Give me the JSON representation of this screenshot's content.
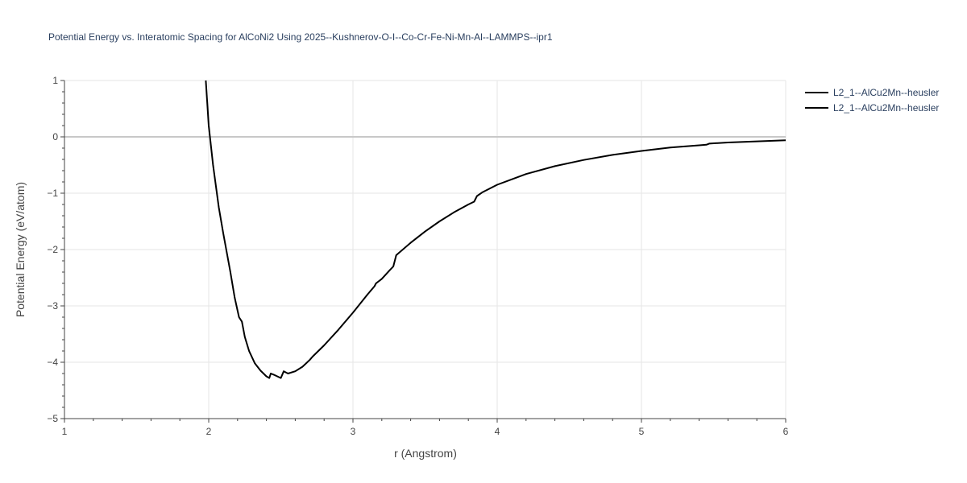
{
  "chart_data": {
    "type": "line",
    "title": "Potential Energy vs. Interatomic Spacing for AlCoNi2 Using 2025--Kushnerov-O-I--Co-Cr-Fe-Ni-Mn-Al--LAMMPS--ipr1",
    "xlabel": "r (Angstrom)",
    "ylabel": "Potential Energy (eV/atom)",
    "xlim": [
      1,
      6
    ],
    "ylim": [
      -5,
      1
    ],
    "x_ticks": [
      1,
      2,
      3,
      4,
      5,
      6
    ],
    "y_ticks": [
      1,
      0,
      -1,
      -2,
      -3,
      -4,
      -5
    ],
    "x_tick_labels": [
      "1",
      "2",
      "3",
      "4",
      "5",
      "6"
    ],
    "y_tick_labels": [
      "1",
      "0",
      "−1",
      "−2",
      "−3",
      "−4",
      "−5"
    ],
    "grid": true,
    "legend_position": "top-right",
    "legend": [
      "L2_1--AlCu2Mn--heusler",
      "L2_1--AlCu2Mn--heusler"
    ],
    "series": [
      {
        "name": "L2_1--AlCu2Mn--heusler",
        "color": "#000000",
        "x": [
          1.98,
          2.0,
          2.03,
          2.07,
          2.1,
          2.15,
          2.18,
          2.21,
          2.23,
          2.25,
          2.28,
          2.32,
          2.36,
          2.4,
          2.42,
          2.43,
          2.45,
          2.5,
          2.52,
          2.55,
          2.6,
          2.65,
          2.7,
          2.72,
          2.8,
          2.9,
          3.0,
          3.1,
          3.15,
          3.16,
          3.2,
          3.25,
          3.28,
          3.3,
          3.4,
          3.5,
          3.6,
          3.7,
          3.8,
          3.84,
          3.86,
          3.9,
          4.0,
          4.2,
          4.4,
          4.6,
          4.8,
          5.0,
          5.2,
          5.4,
          5.45,
          5.47,
          5.6,
          5.8,
          6.0
        ],
        "y": [
          1.0,
          0.2,
          -0.5,
          -1.25,
          -1.7,
          -2.4,
          -2.85,
          -3.2,
          -3.28,
          -3.55,
          -3.8,
          -4.02,
          -4.15,
          -4.25,
          -4.28,
          -4.2,
          -4.22,
          -4.28,
          -4.16,
          -4.2,
          -4.16,
          -4.08,
          -3.96,
          -3.9,
          -3.7,
          -3.42,
          -3.12,
          -2.8,
          -2.65,
          -2.6,
          -2.52,
          -2.38,
          -2.3,
          -2.1,
          -1.88,
          -1.68,
          -1.5,
          -1.34,
          -1.2,
          -1.15,
          -1.05,
          -0.98,
          -0.85,
          -0.66,
          -0.52,
          -0.41,
          -0.32,
          -0.25,
          -0.19,
          -0.15,
          -0.14,
          -0.12,
          -0.1,
          -0.08,
          -0.06
        ]
      }
    ]
  }
}
